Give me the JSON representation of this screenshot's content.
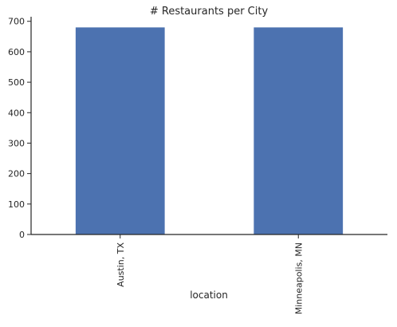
{
  "chart_data": {
    "type": "bar",
    "title": "# Restaurants per City",
    "xlabel": "location",
    "ylabel": "",
    "categories": [
      "Austin, TX",
      "Minneapolis, MN"
    ],
    "values": [
      680,
      680
    ],
    "ylim": [
      0,
      715
    ],
    "yticks": [
      0,
      100,
      200,
      300,
      400,
      500,
      600,
      700
    ],
    "bar_color": "#4c72b0",
    "axis_color": "#262626",
    "grid": false,
    "legend": "none"
  }
}
